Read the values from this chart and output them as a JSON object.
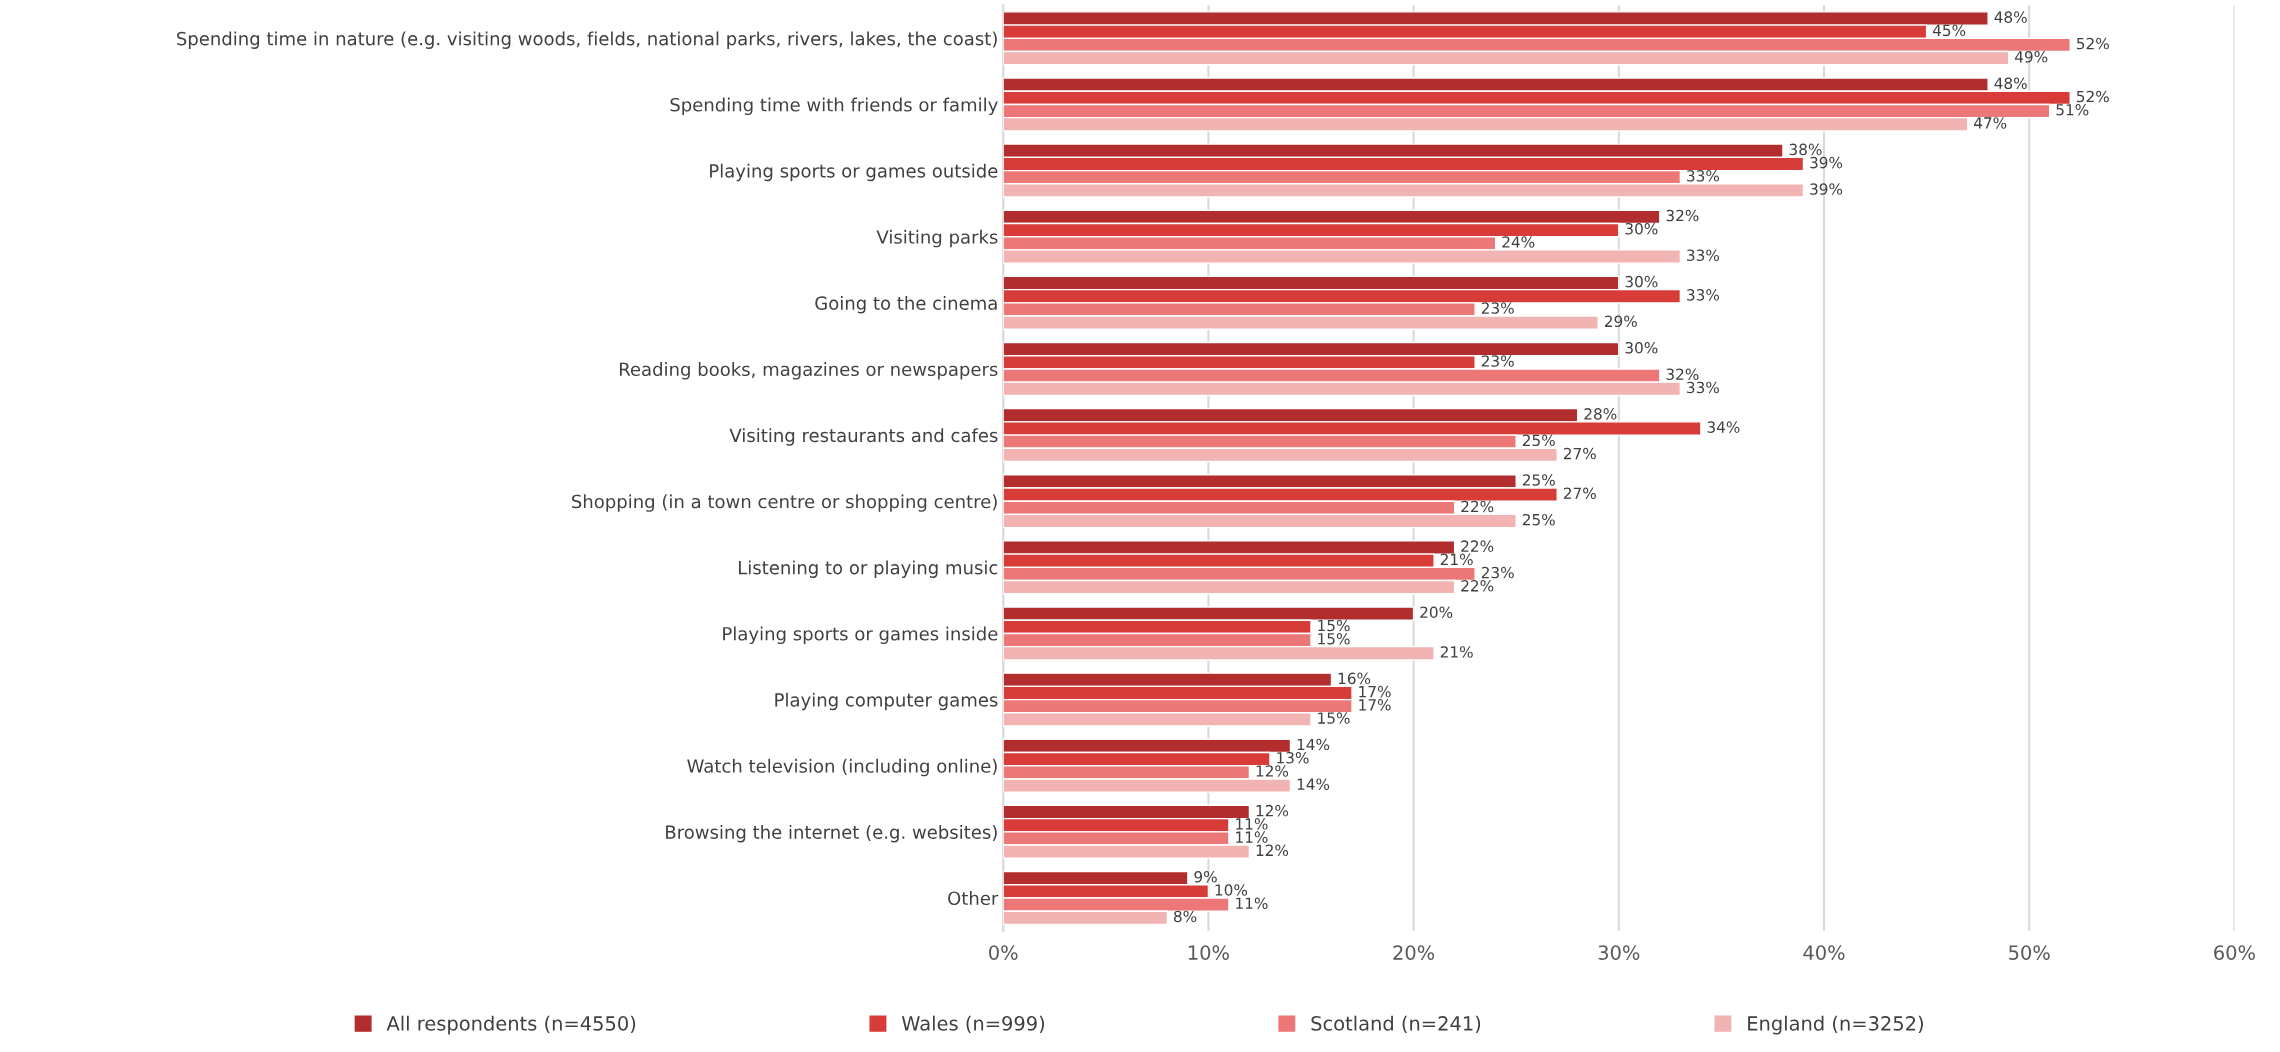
{
  "chart_data": {
    "type": "bar",
    "orientation": "horizontal",
    "categories": [
      "Spending time in nature (e.g. visiting woods, fields, national parks, rivers, lakes, the coast)",
      "Spending time with friends or family",
      "Playing sports or games outside",
      "Visiting parks",
      "Going to the cinema",
      "Reading books, magazines or newspapers",
      "Visiting restaurants and cafes",
      "Shopping (in a town centre or shopping centre)",
      "Listening to or playing music",
      "Playing sports or games inside",
      "Playing computer games",
      "Watch television (including online)",
      "Browsing the internet (e.g. websites)",
      "Other"
    ],
    "series": [
      {
        "name": "All respondents (n=4550)",
        "color": "#b22d2e",
        "values": [
          48,
          48,
          38,
          32,
          30,
          30,
          28,
          25,
          22,
          20,
          16,
          14,
          12,
          9
        ],
        "value_labels": [
          "48%",
          "48%",
          "38%",
          "32%",
          "30%",
          "30%",
          "28%",
          "25%",
          "22%",
          "20%",
          "16%",
          "14%",
          "12%",
          "9%"
        ]
      },
      {
        "name": "Wales (n=999)",
        "color": "#d83c38",
        "values": [
          45,
          52,
          39,
          30,
          33,
          23,
          34,
          27,
          21,
          15,
          17,
          13,
          11,
          10
        ],
        "value_labels": [
          "45%",
          "52%",
          "39%",
          "30%",
          "33%",
          "23%",
          "34%",
          "27%",
          "21%",
          "15%",
          "17%",
          "13%",
          "11%",
          "10%"
        ]
      },
      {
        "name": "Scotland (n=241)",
        "color": "#ec7777",
        "values": [
          52,
          51,
          33,
          24,
          23,
          32,
          25,
          22,
          23,
          15,
          17,
          12,
          11,
          11
        ],
        "value_labels": [
          "52%",
          "51%",
          "33%",
          "24%",
          "23%",
          "32%",
          "25%",
          "22%",
          "23%",
          "15%",
          "17%",
          "12%",
          "11%",
          "11%"
        ]
      },
      {
        "name": "England (n=3252)",
        "color": "#f2b3b3",
        "values": [
          49,
          47,
          39,
          33,
          29,
          33,
          27,
          25,
          22,
          21,
          15,
          14,
          12,
          8
        ],
        "value_labels": [
          "49%",
          "47%",
          "39%",
          "33%",
          "29%",
          "33%",
          "27%",
          "25%",
          "22%",
          "21%",
          "15%",
          "14%",
          "12%",
          "8%"
        ]
      }
    ],
    "xlim": [
      0,
      60
    ],
    "xticks": [
      {
        "value": 0,
        "label": "0%"
      },
      {
        "value": 10,
        "label": "10%"
      },
      {
        "value": 20,
        "label": "20%"
      },
      {
        "value": 30,
        "label": "30%"
      },
      {
        "value": 40,
        "label": "40%"
      },
      {
        "value": 50,
        "label": "50%"
      },
      {
        "value": 60,
        "label": "60%"
      }
    ],
    "grid": "x",
    "legend": "bottom"
  }
}
